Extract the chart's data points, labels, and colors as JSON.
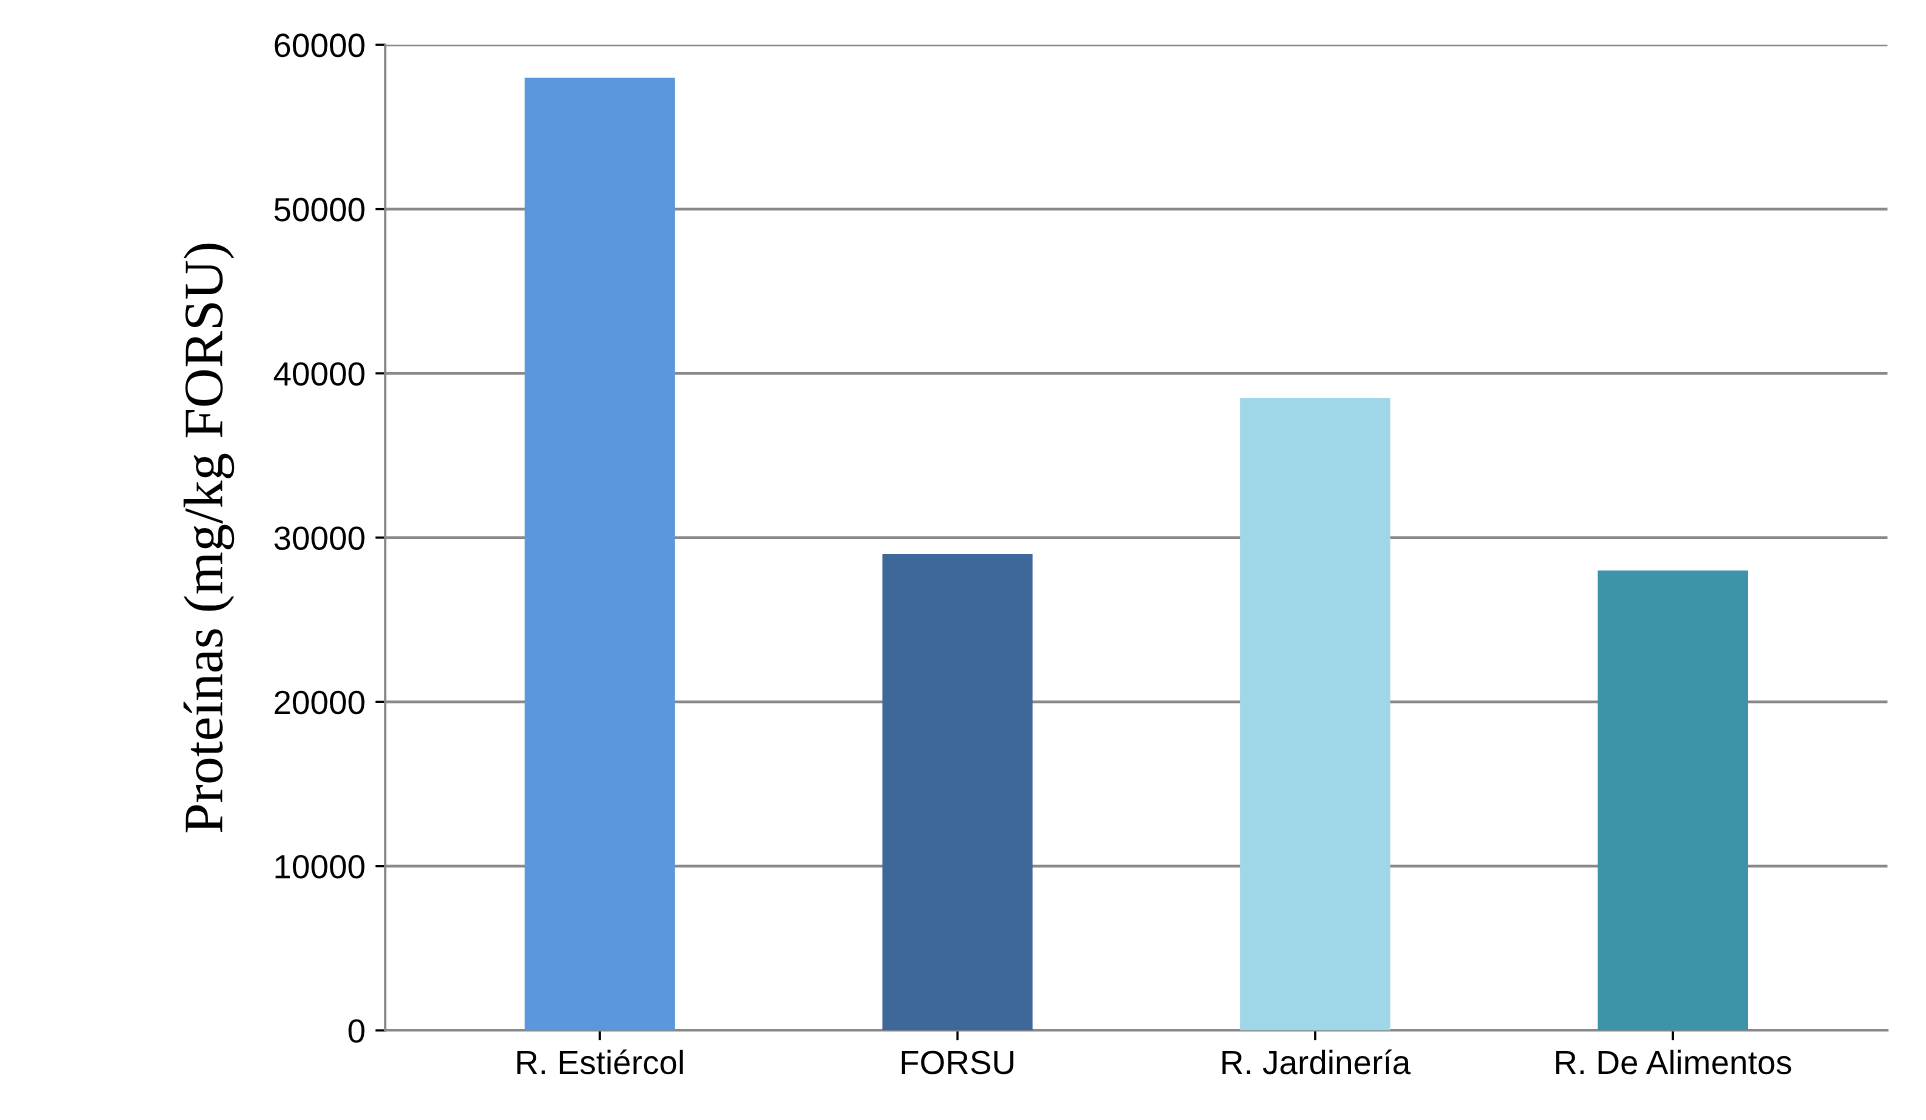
{
  "chart_data": {
    "type": "bar",
    "ylabel": "Proteínas (mg/kg FORSU)",
    "categories": [
      "R. Estiércol",
      "FORSU",
      "R. Jardinería",
      "R. De Alimentos"
    ],
    "values": [
      58000,
      29000,
      38500,
      28000
    ],
    "colors": [
      "#5b97dd",
      "#3e6899",
      "#9fd6e8",
      "#3d93a8"
    ],
    "ylim": [
      0,
      60000
    ],
    "yticks": [
      0,
      10000,
      20000,
      30000,
      40000,
      50000,
      60000
    ],
    "grid": "y"
  }
}
